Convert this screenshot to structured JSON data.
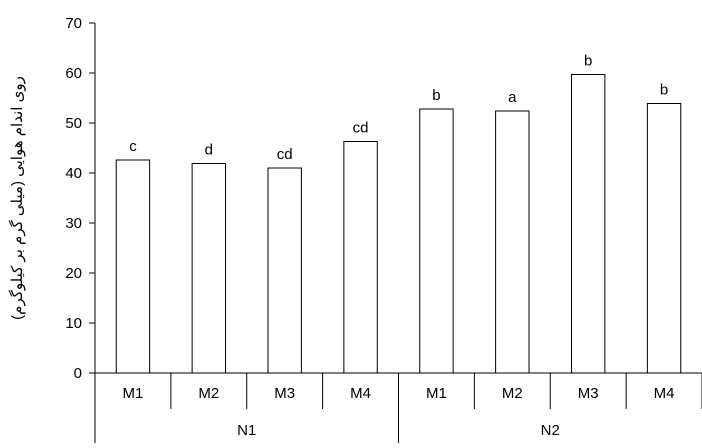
{
  "chart_data": {
    "type": "bar",
    "title": "",
    "xlabel": "",
    "ylabel": "روی اندام هوایی (میلی گرم بر کیلوگرم)",
    "ylim": [
      0,
      70
    ],
    "yticks": [
      0,
      10,
      20,
      30,
      40,
      50,
      60,
      70
    ],
    "grid": false,
    "bar_fill": "#ffffff",
    "bar_stroke": "#000000",
    "groups": [
      {
        "label": "N1",
        "categories": [
          "M1",
          "M2",
          "M3",
          "M4"
        ]
      },
      {
        "label": "N2",
        "categories": [
          "M1",
          "M2",
          "M3",
          "M4"
        ]
      }
    ],
    "categories": [
      "M1",
      "M2",
      "M3",
      "M4",
      "M1",
      "M2",
      "M3",
      "M4"
    ],
    "values": [
      42.6,
      41.9,
      41.0,
      46.3,
      52.8,
      52.4,
      59.7,
      53.9
    ],
    "data_labels": [
      "c",
      "d",
      "cd",
      "cd",
      "b",
      "a",
      "b",
      "b"
    ]
  }
}
